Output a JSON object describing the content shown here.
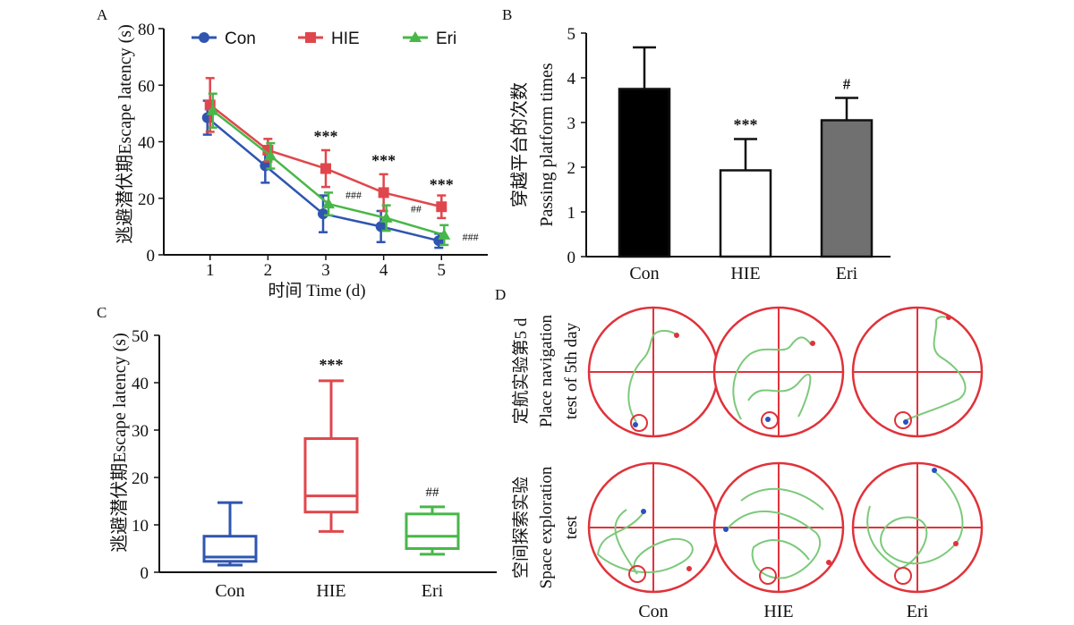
{
  "figure": {
    "panel_labels": [
      "A",
      "B",
      "C",
      "D"
    ]
  },
  "chart_data": [
    {
      "panel": "A",
      "type": "line",
      "xlabel": "时间  Time (d)",
      "ylabel": "逃避潜伏期Escape latency (s)",
      "x": [
        1,
        2,
        3,
        4,
        5
      ],
      "xlim": [
        0.2,
        5.8
      ],
      "ylim": [
        0,
        80
      ],
      "yticks": [
        0,
        20,
        40,
        60,
        80
      ],
      "legend_position": "top",
      "series": [
        {
          "name": "Con",
          "color": "#2f55b0",
          "marker": "circle",
          "values": [
            48.5,
            31.5,
            14.5,
            10,
            5
          ],
          "err": [
            6,
            6,
            6.5,
            5.5,
            2.5
          ]
        },
        {
          "name": "HIE",
          "color": "#e0474c",
          "marker": "square",
          "values": [
            53,
            37,
            30.5,
            22,
            17
          ],
          "err": [
            9.5,
            4,
            6.5,
            6.5,
            4
          ]
        },
        {
          "name": "Eri",
          "color": "#48b749",
          "marker": "triangle",
          "values": [
            51,
            35,
            18,
            13,
            7
          ],
          "err": [
            6,
            4.5,
            4,
            4.5,
            3.5
          ]
        }
      ],
      "annotations": [
        {
          "text": "***",
          "x": 3,
          "y": 40
        },
        {
          "text": "***",
          "x": 4,
          "y": 31.5
        },
        {
          "text": "***",
          "x": 5,
          "y": 23
        },
        {
          "text": "###",
          "x": 3.48,
          "y": 20
        },
        {
          "text": "##",
          "x": 4.56,
          "y": 15
        },
        {
          "text": "###",
          "x": 5.5,
          "y": 5
        }
      ]
    },
    {
      "panel": "B",
      "type": "bar",
      "ylabel_lines": [
        "穿越平台的次数",
        "Passing platform times"
      ],
      "categories": [
        "Con",
        "HIE",
        "Eri"
      ],
      "values": [
        3.75,
        1.93,
        3.05
      ],
      "err": [
        0.93,
        0.7,
        0.5
      ],
      "colors": [
        "#000000",
        "#ffffff",
        "#707070"
      ],
      "ylim": [
        0,
        5
      ],
      "yticks": [
        0,
        1,
        2,
        3,
        4,
        5
      ],
      "annotations": [
        "",
        "***",
        "#"
      ]
    },
    {
      "panel": "C",
      "type": "box",
      "ylabel": "逃避潜伏期Escape latency (s)",
      "categories": [
        "Con",
        "HIE",
        "Eri"
      ],
      "colors": [
        "#2f55b0",
        "#e0474c",
        "#48b749"
      ],
      "ylim": [
        0,
        50
      ],
      "yticks": [
        0,
        10,
        20,
        30,
        40,
        50
      ],
      "boxes": [
        {
          "min": 1.5,
          "q1": 2.3,
          "median": 3.2,
          "q3": 7.6,
          "max": 14.7
        },
        {
          "min": 8.6,
          "q1": 12.7,
          "median": 16.1,
          "q3": 28.2,
          "max": 40.4
        },
        {
          "min": 3.8,
          "q1": 5,
          "median": 7.6,
          "q3": 12.3,
          "max": 13.8
        }
      ],
      "annotations": [
        "",
        "***",
        "##"
      ]
    },
    {
      "panel": "D",
      "type": "image-grid",
      "row_labels": [
        [
          "定航实验第5 d",
          "Place navigation",
          "test of 5th day"
        ],
        [
          "空间探索实验",
          "Space exploration",
          "test"
        ]
      ],
      "column_labels": [
        "Con",
        "HIE",
        "Eri"
      ],
      "colors": {
        "pool": "#e0323a",
        "path": "#7cc97a",
        "start_dot": "#2a4fc0",
        "end_dot": "#e0323a"
      }
    }
  ]
}
